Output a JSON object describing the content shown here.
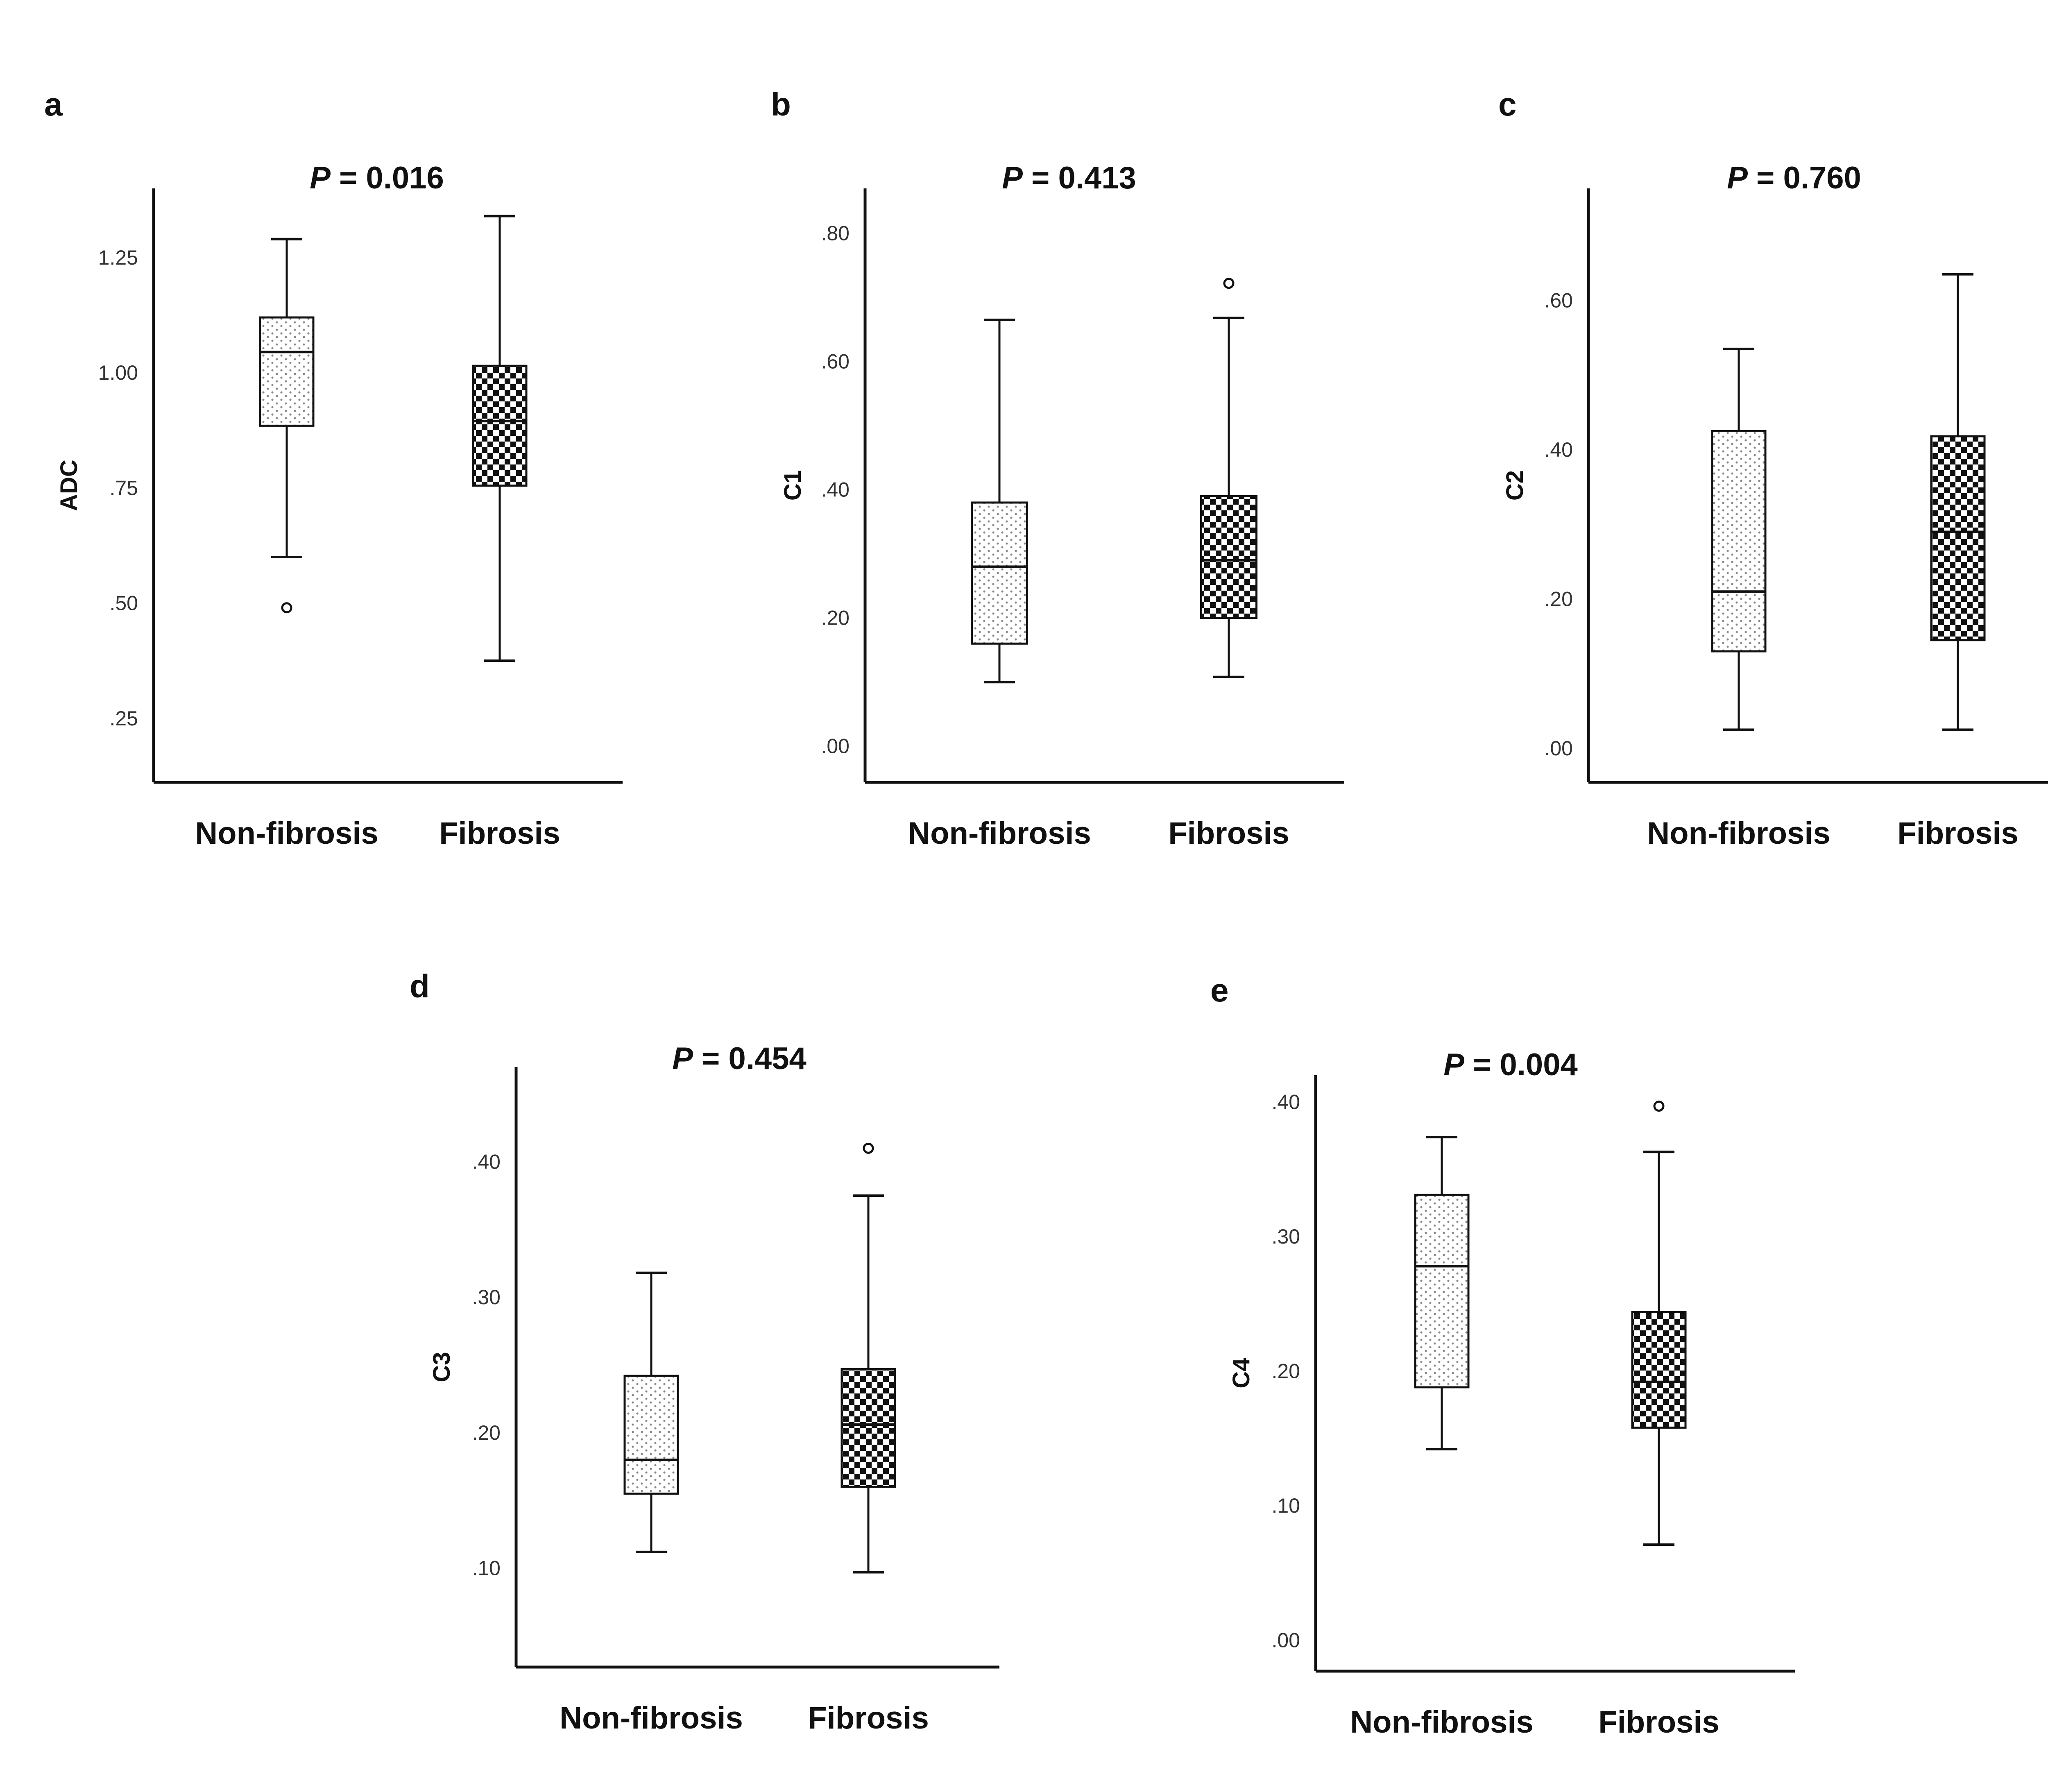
{
  "figure": {
    "patterns": {
      "non_fibrosis": "dotted",
      "fibrosis": "checkerboard"
    },
    "colors": {
      "ink": "#111111",
      "box_fill": "#ffffff",
      "check_dark": "#111111"
    }
  },
  "chart_data": [
    {
      "type": "box",
      "panel": "a",
      "title_p_label": "P",
      "title_rest": "= 0.016",
      "ylabel": "ADC",
      "ylim": [
        0.12,
        1.4
      ],
      "yticks": [
        0.25,
        0.5,
        0.75,
        1.0,
        1.25
      ],
      "ytick_labels": [
        ".25",
        ".50",
        ".75",
        "1.00",
        "1.25"
      ],
      "categories": [
        "Non-fibrosis",
        "Fibrosis"
      ],
      "boxes": [
        {
          "group": "Non-fibrosis",
          "min": 0.6,
          "q1": 0.885,
          "median": 1.045,
          "q3": 1.12,
          "max": 1.29,
          "outliers": [
            0.49
          ]
        },
        {
          "group": "Fibrosis",
          "min": 0.375,
          "q1": 0.755,
          "median": 0.895,
          "q3": 1.015,
          "max": 1.34,
          "outliers": []
        }
      ]
    },
    {
      "type": "box",
      "panel": "b",
      "title_p_label": "P",
      "title_rest": "= 0.413",
      "ylabel": "C1",
      "ylim": [
        -0.05,
        0.87
      ],
      "yticks": [
        0.0,
        0.2,
        0.4,
        0.6,
        0.8
      ],
      "ytick_labels": [
        ".00",
        ".20",
        ".40",
        ".60",
        ".80"
      ],
      "categories": [
        "Non-fibrosis",
        "Fibrosis"
      ],
      "boxes": [
        {
          "group": "Non-fibrosis",
          "min": 0.1,
          "q1": 0.16,
          "median": 0.28,
          "q3": 0.38,
          "max": 0.665,
          "outliers": []
        },
        {
          "group": "Fibrosis",
          "min": 0.108,
          "q1": 0.2,
          "median": 0.29,
          "q3": 0.39,
          "max": 0.668,
          "outliers": [
            0.722
          ]
        }
      ]
    },
    {
      "type": "box",
      "panel": "c",
      "title_p_label": "P",
      "title_rest": "= 0.760",
      "ylabel": "C2",
      "ylim": [
        -0.04,
        0.75
      ],
      "yticks": [
        0.0,
        0.2,
        0.4,
        0.6
      ],
      "ytick_labels": [
        ".00",
        ".20",
        ".40",
        ".60"
      ],
      "categories": [
        "Non-fibrosis",
        "Fibrosis"
      ],
      "boxes": [
        {
          "group": "Non-fibrosis",
          "min": 0.025,
          "q1": 0.13,
          "median": 0.21,
          "q3": 0.425,
          "max": 0.535,
          "outliers": []
        },
        {
          "group": "Fibrosis",
          "min": 0.025,
          "q1": 0.145,
          "median": 0.29,
          "q3": 0.418,
          "max": 0.635,
          "outliers": []
        }
      ]
    },
    {
      "type": "box",
      "panel": "d",
      "title_p_label": "P",
      "title_rest": "= 0.454",
      "ylabel": "C3",
      "ylim": [
        0.03,
        0.47
      ],
      "yticks": [
        0.1,
        0.2,
        0.3,
        0.4
      ],
      "ytick_labels": [
        ".10",
        ".20",
        ".30",
        ".40"
      ],
      "categories": [
        "Non-fibrosis",
        "Fibrosis"
      ],
      "boxes": [
        {
          "group": "Non-fibrosis",
          "min": 0.112,
          "q1": 0.155,
          "median": 0.18,
          "q3": 0.242,
          "max": 0.318,
          "outliers": []
        },
        {
          "group": "Fibrosis",
          "min": 0.097,
          "q1": 0.16,
          "median": 0.206,
          "q3": 0.247,
          "max": 0.375,
          "outliers": [
            0.41
          ]
        }
      ]
    },
    {
      "type": "box",
      "panel": "e",
      "title_p_label": "P",
      "title_rest": "= 0.004",
      "ylabel": "C4",
      "ylim": [
        -0.02,
        0.42
      ],
      "yticks": [
        0.0,
        0.1,
        0.2,
        0.3,
        0.4
      ],
      "ytick_labels": [
        ".00",
        ".10",
        ".20",
        ".30",
        ".40"
      ],
      "categories": [
        "Non-fibrosis",
        "Fibrosis"
      ],
      "boxes": [
        {
          "group": "Non-fibrosis",
          "min": 0.142,
          "q1": 0.188,
          "median": 0.278,
          "q3": 0.331,
          "max": 0.374,
          "outliers": []
        },
        {
          "group": "Fibrosis",
          "min": 0.071,
          "q1": 0.158,
          "median": 0.192,
          "q3": 0.244,
          "max": 0.363,
          "outliers": [
            0.397
          ]
        }
      ]
    }
  ]
}
